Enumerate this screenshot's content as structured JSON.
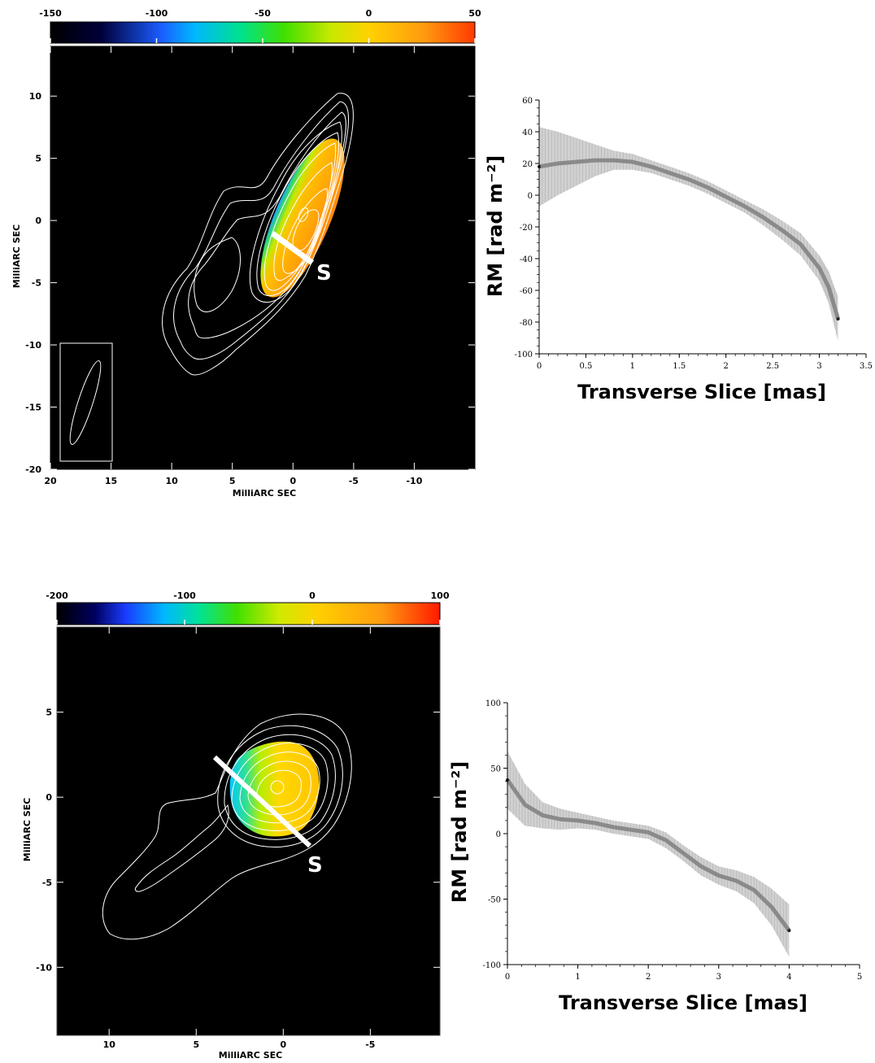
{
  "chart_data": [
    {
      "type": "heatmap",
      "colorbar": {
        "min": -150,
        "max": 50,
        "ticks": [
          -150,
          -100,
          -50,
          0,
          50
        ]
      },
      "xlabel": "MilliARC SEC",
      "ylabel": "MilliARC SEC",
      "xlim": [
        20,
        -15
      ],
      "ylim": [
        -20,
        14
      ],
      "xticks": [
        20,
        15,
        10,
        5,
        0,
        -5,
        -10
      ],
      "yticks": [
        10,
        5,
        0,
        -5,
        -10,
        -15,
        -20
      ],
      "slice_label": "S"
    },
    {
      "type": "line",
      "xlabel": "Transverse Slice [mas]",
      "ylabel": "RM [rad m⁻²]",
      "xlim": [
        0,
        3.5
      ],
      "ylim": [
        -100,
        60
      ],
      "xticks": [
        0,
        0.5,
        1,
        1.5,
        2,
        2.5,
        3,
        3.5
      ],
      "yticks": [
        60,
        40,
        20,
        0,
        -20,
        -40,
        -60,
        -80,
        -100
      ],
      "series": [
        {
          "x": [
            0,
            0.2,
            0.4,
            0.6,
            0.8,
            1.0,
            1.2,
            1.4,
            1.6,
            1.8,
            2.0,
            2.2,
            2.4,
            2.6,
            2.8,
            3.0,
            3.1,
            3.2
          ],
          "y": [
            18,
            20,
            21,
            22,
            22,
            21,
            18,
            14,
            10,
            5,
            -1,
            -7,
            -14,
            -22,
            -31,
            -46,
            -58,
            -78
          ],
          "err": [
            25,
            20,
            15,
            10,
            6,
            5,
            4,
            4,
            4,
            4,
            4,
            4,
            5,
            6,
            7,
            8,
            10,
            14
          ]
        }
      ]
    },
    {
      "type": "heatmap",
      "colorbar": {
        "min": -200,
        "max": 100,
        "ticks": [
          -200,
          -100,
          0,
          100
        ]
      },
      "xlabel": "MilliARC SEC",
      "ylabel": "MilliARC SEC",
      "xlim": [
        13,
        -9
      ],
      "ylim": [
        -14,
        10
      ],
      "xticks": [
        10,
        5,
        0,
        -5
      ],
      "yticks": [
        5,
        0,
        -5,
        -10
      ],
      "slice_label": "S"
    },
    {
      "type": "line",
      "xlabel": "Transverse Slice [mas]",
      "ylabel": "RM [rad m⁻²]",
      "xlim": [
        0,
        5
      ],
      "ylim": [
        -100,
        100
      ],
      "xticks": [
        0,
        1,
        2,
        3,
        4,
        5
      ],
      "yticks": [
        100,
        50,
        0,
        -50,
        -100
      ],
      "series": [
        {
          "x": [
            0,
            0.25,
            0.5,
            0.75,
            1.0,
            1.25,
            1.5,
            1.75,
            2.0,
            2.25,
            2.5,
            2.75,
            3.0,
            3.25,
            3.5,
            3.75,
            4.0
          ],
          "y": [
            41,
            22,
            14,
            11,
            10,
            8,
            5,
            3,
            1,
            -5,
            -15,
            -25,
            -32,
            -36,
            -43,
            -56,
            -74
          ],
          "err": [
            22,
            16,
            10,
            8,
            6,
            5,
            5,
            5,
            5,
            6,
            6,
            7,
            7,
            8,
            10,
            14,
            20
          ]
        }
      ]
    }
  ]
}
